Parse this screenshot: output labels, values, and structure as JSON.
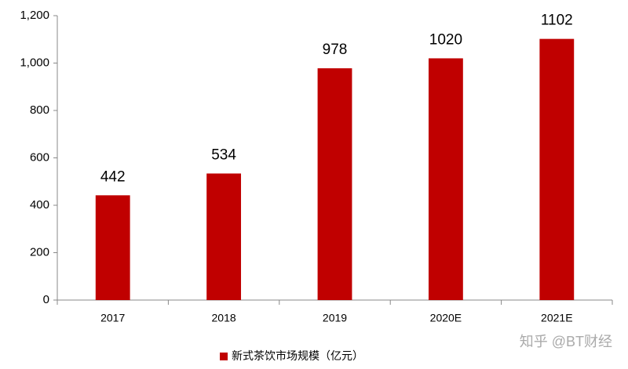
{
  "chart_data": {
    "type": "bar",
    "categories": [
      "2017",
      "2018",
      "2019",
      "2020E",
      "2021E"
    ],
    "series": [
      {
        "name": "新式茶饮市场规模（亿元）",
        "color": "#c00000",
        "values": [
          442,
          534,
          978,
          1020,
          1102
        ]
      }
    ],
    "ylim": [
      0,
      1200
    ],
    "yticks": [
      0,
      200,
      400,
      600,
      800,
      {
        "value": 1000,
        "label": "1,000"
      },
      {
        "value": 1200,
        "label": "1,200"
      }
    ],
    "grid": false,
    "legend": "bottom",
    "data_labels": true,
    "watermark": "知乎 @BT财经"
  }
}
